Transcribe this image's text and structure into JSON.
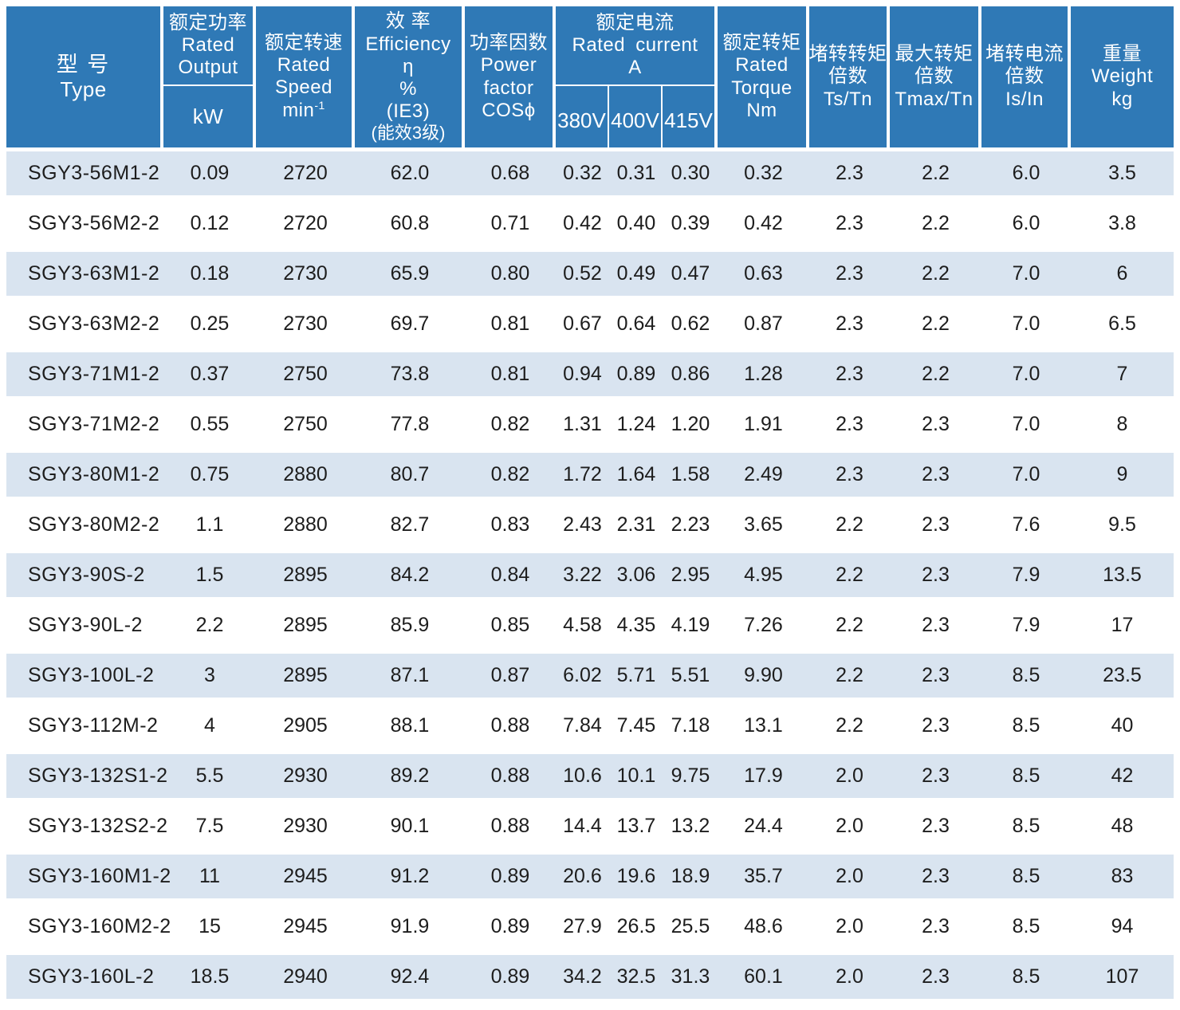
{
  "colors": {
    "header_blue": "#2f79b6",
    "row_stripe": "#d9e4f0",
    "header_text": "#ffffff",
    "data_text": "#1d1d1d"
  },
  "table": {
    "header": {
      "type": {
        "lines": [
          "型 号",
          "Type"
        ]
      },
      "rated_output": {
        "zh": "额定功率",
        "en1": "Rated",
        "en2": "Output",
        "unit": "kW"
      },
      "rated_speed": {
        "zh": "额定转速",
        "en1": "Rated",
        "en2": "Speed",
        "unit_base": "min",
        "unit_exp": "-1"
      },
      "efficiency": {
        "l0": "效 率",
        "l1": "Efficiency",
        "l2": "η",
        "l3": "%",
        "l4": "(IE3)",
        "l5": "(能效3级)"
      },
      "power_factor": {
        "l0": "功率因数",
        "l1": "Power",
        "l2": "factor",
        "l3": "COSϕ"
      },
      "rated_current": {
        "zh": "额定电流",
        "en": "Rated current",
        "unit": "A",
        "voltages": [
          "380V",
          "400V",
          "415V"
        ]
      },
      "rated_torque": {
        "l0": "额定转矩",
        "l1": "Rated",
        "l2": "Torque",
        "l3": "Nm"
      },
      "locked_rotor_torque": {
        "l0": "堵转转矩",
        "l1": "倍数",
        "l2": "Ts/Tn"
      },
      "max_torque": {
        "l0": "最大转矩",
        "l1": "倍数",
        "l2": "Tmax/Tn"
      },
      "locked_rotor_current": {
        "l0": "堵转电流",
        "l1": "倍数",
        "l2": "Is/In"
      },
      "weight": {
        "l0": "重量",
        "l1": "Weight",
        "l2": "kg"
      }
    },
    "rows": [
      {
        "type": "SGY3-56M1-2",
        "kw": "0.09",
        "speed": "2720",
        "eff": "62.0",
        "pf": "0.68",
        "a380": "0.32",
        "a400": "0.31",
        "a415": "0.30",
        "torque": "0.32",
        "ts": "2.3",
        "tmax": "2.2",
        "isin": "6.0",
        "weight": "3.5"
      },
      {
        "type": "SGY3-56M2-2",
        "kw": "0.12",
        "speed": "2720",
        "eff": "60.8",
        "pf": "0.71",
        "a380": "0.42",
        "a400": "0.40",
        "a415": "0.39",
        "torque": "0.42",
        "ts": "2.3",
        "tmax": "2.2",
        "isin": "6.0",
        "weight": "3.8"
      },
      {
        "type": "SGY3-63M1-2",
        "kw": "0.18",
        "speed": "2730",
        "eff": "65.9",
        "pf": "0.80",
        "a380": "0.52",
        "a400": "0.49",
        "a415": "0.47",
        "torque": "0.63",
        "ts": "2.3",
        "tmax": "2.2",
        "isin": "7.0",
        "weight": "6"
      },
      {
        "type": "SGY3-63M2-2",
        "kw": "0.25",
        "speed": "2730",
        "eff": "69.7",
        "pf": "0.81",
        "a380": "0.67",
        "a400": "0.64",
        "a415": "0.62",
        "torque": "0.87",
        "ts": "2.3",
        "tmax": "2.2",
        "isin": "7.0",
        "weight": "6.5"
      },
      {
        "type": "SGY3-71M1-2",
        "kw": "0.37",
        "speed": "2750",
        "eff": "73.8",
        "pf": "0.81",
        "a380": "0.94",
        "a400": "0.89",
        "a415": "0.86",
        "torque": "1.28",
        "ts": "2.3",
        "tmax": "2.2",
        "isin": "7.0",
        "weight": "7"
      },
      {
        "type": "SGY3-71M2-2",
        "kw": "0.55",
        "speed": "2750",
        "eff": "77.8",
        "pf": "0.82",
        "a380": "1.31",
        "a400": "1.24",
        "a415": "1.20",
        "torque": "1.91",
        "ts": "2.3",
        "tmax": "2.3",
        "isin": "7.0",
        "weight": "8"
      },
      {
        "type": "SGY3-80M1-2",
        "kw": "0.75",
        "speed": "2880",
        "eff": "80.7",
        "pf": "0.82",
        "a380": "1.72",
        "a400": "1.64",
        "a415": "1.58",
        "torque": "2.49",
        "ts": "2.3",
        "tmax": "2.3",
        "isin": "7.0",
        "weight": "9"
      },
      {
        "type": "SGY3-80M2-2",
        "kw": "1.1",
        "speed": "2880",
        "eff": "82.7",
        "pf": "0.83",
        "a380": "2.43",
        "a400": "2.31",
        "a415": "2.23",
        "torque": "3.65",
        "ts": "2.2",
        "tmax": "2.3",
        "isin": "7.6",
        "weight": "9.5"
      },
      {
        "type": "SGY3-90S-2",
        "kw": "1.5",
        "speed": "2895",
        "eff": "84.2",
        "pf": "0.84",
        "a380": "3.22",
        "a400": "3.06",
        "a415": "2.95",
        "torque": "4.95",
        "ts": "2.2",
        "tmax": "2.3",
        "isin": "7.9",
        "weight": "13.5"
      },
      {
        "type": "SGY3-90L-2",
        "kw": "2.2",
        "speed": "2895",
        "eff": "85.9",
        "pf": "0.85",
        "a380": "4.58",
        "a400": "4.35",
        "a415": "4.19",
        "torque": "7.26",
        "ts": "2.2",
        "tmax": "2.3",
        "isin": "7.9",
        "weight": "17"
      },
      {
        "type": "SGY3-100L-2",
        "kw": "3",
        "speed": "2895",
        "eff": "87.1",
        "pf": "0.87",
        "a380": "6.02",
        "a400": "5.71",
        "a415": "5.51",
        "torque": "9.90",
        "ts": "2.2",
        "tmax": "2.3",
        "isin": "8.5",
        "weight": "23.5"
      },
      {
        "type": "SGY3-112M-2",
        "kw": "4",
        "speed": "2905",
        "eff": "88.1",
        "pf": "0.88",
        "a380": "7.84",
        "a400": "7.45",
        "a415": "7.18",
        "torque": "13.1",
        "ts": "2.2",
        "tmax": "2.3",
        "isin": "8.5",
        "weight": "40"
      },
      {
        "type": "SGY3-132S1-2",
        "kw": "5.5",
        "speed": "2930",
        "eff": "89.2",
        "pf": "0.88",
        "a380": "10.6",
        "a400": "10.1",
        "a415": "9.75",
        "torque": "17.9",
        "ts": "2.0",
        "tmax": "2.3",
        "isin": "8.5",
        "weight": "42"
      },
      {
        "type": "SGY3-132S2-2",
        "kw": "7.5",
        "speed": "2930",
        "eff": "90.1",
        "pf": "0.88",
        "a380": "14.4",
        "a400": "13.7",
        "a415": "13.2",
        "torque": "24.4",
        "ts": "2.0",
        "tmax": "2.3",
        "isin": "8.5",
        "weight": "48"
      },
      {
        "type": "SGY3-160M1-2",
        "kw": "11",
        "speed": "2945",
        "eff": "91.2",
        "pf": "0.89",
        "a380": "20.6",
        "a400": "19.6",
        "a415": "18.9",
        "torque": "35.7",
        "ts": "2.0",
        "tmax": "2.3",
        "isin": "8.5",
        "weight": "83"
      },
      {
        "type": "SGY3-160M2-2",
        "kw": "15",
        "speed": "2945",
        "eff": "91.9",
        "pf": "0.89",
        "a380": "27.9",
        "a400": "26.5",
        "a415": "25.5",
        "torque": "48.6",
        "ts": "2.0",
        "tmax": "2.3",
        "isin": "8.5",
        "weight": "94"
      },
      {
        "type": "SGY3-160L-2",
        "kw": "18.5",
        "speed": "2940",
        "eff": "92.4",
        "pf": "0.89",
        "a380": "34.2",
        "a400": "32.5",
        "a415": "31.3",
        "torque": "60.1",
        "ts": "2.0",
        "tmax": "2.3",
        "isin": "8.5",
        "weight": "107"
      }
    ]
  }
}
